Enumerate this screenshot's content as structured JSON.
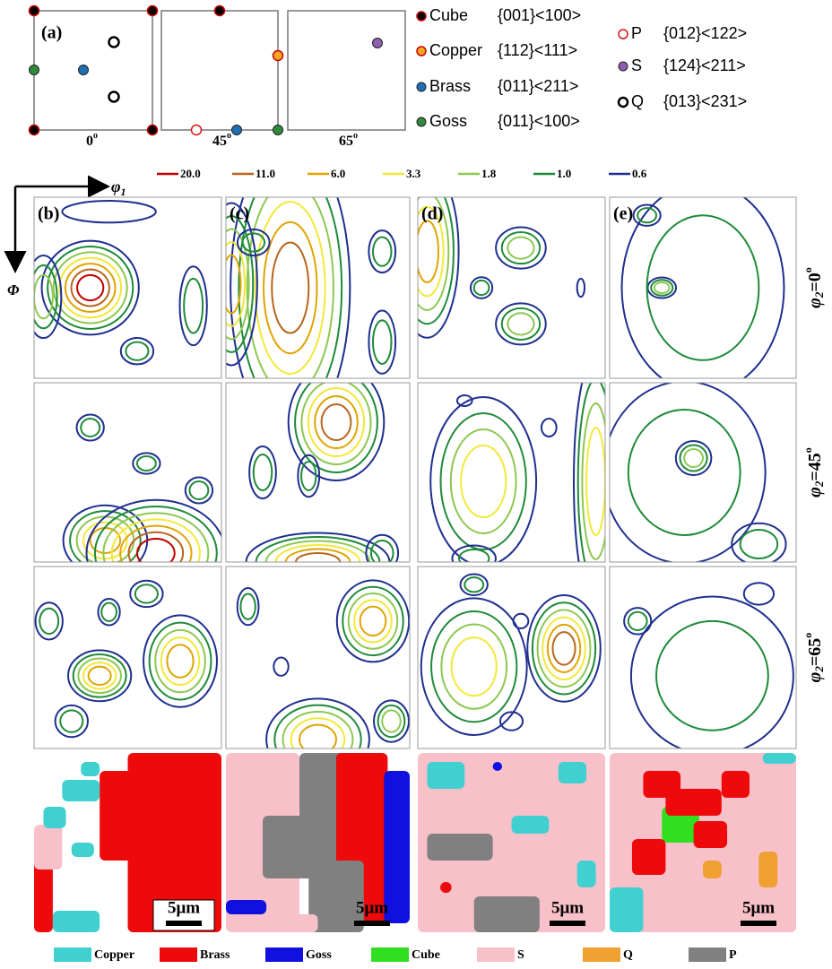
{
  "panel_a": {
    "label": "(a)",
    "angles": [
      {
        "value": "0",
        "sup": "o"
      },
      {
        "value": "45",
        "sup": "o"
      },
      {
        "value": "65",
        "sup": "o"
      }
    ],
    "orientations": [
      {
        "name": "Cube",
        "indices": "{001}<100>"
      },
      {
        "name": "Copper",
        "indices": "{112}<111>"
      },
      {
        "name": "Brass",
        "indices": "{011}<211>"
      },
      {
        "name": "Goss",
        "indices": "{011}<100>"
      },
      {
        "name": "P",
        "indices": "{012}<122>"
      },
      {
        "name": "S",
        "indices": "{124}<211>"
      },
      {
        "name": "Q",
        "indices": "{013}<231>"
      }
    ]
  },
  "contour_levels": [
    "20.0",
    "11.0",
    "6.0",
    "3.3",
    "1.8",
    "1.0",
    "0.6"
  ],
  "axes": {
    "phi1": {
      "symbol": "φ",
      "sub": "1"
    },
    "Phi": "Φ"
  },
  "panels": [
    "(b)",
    "(c)",
    "(d)",
    "(e)"
  ],
  "rows": [
    {
      "symbol": "φ",
      "sub": "2",
      "eq": "=0",
      "sup": "o"
    },
    {
      "symbol": "φ",
      "sub": "2",
      "eq": "=45",
      "sup": "o"
    },
    {
      "symbol": "φ",
      "sub": "2",
      "eq": "=65",
      "sup": "o"
    }
  ],
  "scale_bars": [
    "5μm",
    "5μm",
    "5μm",
    "5μm"
  ],
  "phase_legend": [
    "Copper",
    "Brass",
    "Goss",
    "Cube",
    "S",
    "Q",
    "P"
  ]
}
